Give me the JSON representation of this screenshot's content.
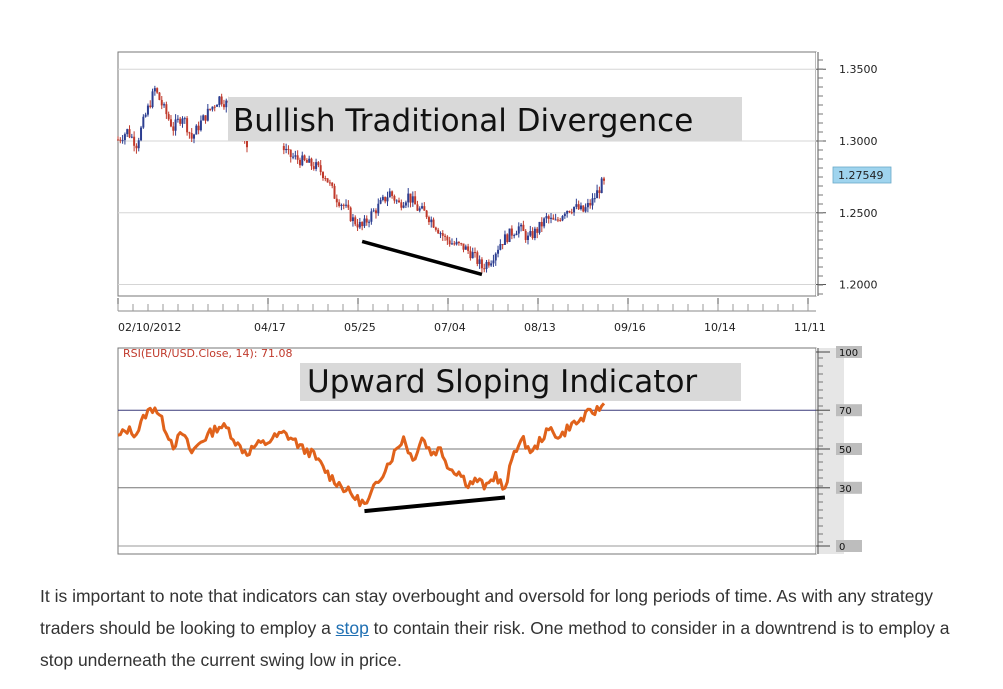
{
  "chart_data": [
    {
      "type": "candlestick",
      "title": "Bullish Traditional Divergence",
      "x_tick_labels": [
        "02/10/2012",
        "04/17",
        "05/25",
        "07/04",
        "08/13",
        "09/16",
        "10/14",
        "11/11"
      ],
      "y_tick_labels": [
        "1.3500",
        "1.3000",
        "1.2500",
        "1.2000"
      ],
      "ylim": [
        1.192,
        1.362
      ],
      "current_price_label": "1.27549",
      "current_price": 1.27549,
      "close_path": [
        [
          0,
          1.301
        ],
        [
          4,
          1.307
        ],
        [
          8,
          1.298
        ],
        [
          12,
          1.318
        ],
        [
          16,
          1.336
        ],
        [
          20,
          1.322
        ],
        [
          24,
          1.309
        ],
        [
          28,
          1.318
        ],
        [
          32,
          1.302
        ],
        [
          36,
          1.313
        ],
        [
          40,
          1.322
        ],
        [
          44,
          1.33
        ],
        [
          48,
          1.325
        ],
        [
          52,
          1.315
        ],
        [
          56,
          1.296
        ],
        [
          62,
          1.3
        ],
        [
          68,
          1.303
        ],
        [
          74,
          1.29
        ],
        [
          80,
          1.286
        ],
        [
          86,
          1.282
        ],
        [
          90,
          1.276
        ],
        [
          94,
          1.262
        ],
        [
          98,
          1.255
        ],
        [
          102,
          1.245
        ],
        [
          106,
          1.24
        ],
        [
          110,
          1.249
        ],
        [
          114,
          1.256
        ],
        [
          118,
          1.264
        ],
        [
          122,
          1.256
        ],
        [
          126,
          1.262
        ],
        [
          130,
          1.253
        ],
        [
          134,
          1.249
        ],
        [
          138,
          1.241
        ],
        [
          142,
          1.232
        ],
        [
          146,
          1.228
        ],
        [
          150,
          1.226
        ],
        [
          154,
          1.221
        ],
        [
          158,
          1.212
        ],
        [
          162,
          1.218
        ],
        [
          166,
          1.229
        ],
        [
          170,
          1.235
        ],
        [
          174,
          1.24
        ],
        [
          178,
          1.232
        ],
        [
          182,
          1.238
        ],
        [
          186,
          1.246
        ],
        [
          190,
          1.243
        ],
        [
          194,
          1.252
        ],
        [
          198,
          1.254
        ],
        [
          202,
          1.251
        ],
        [
          206,
          1.258
        ],
        [
          210,
          1.27
        ]
      ],
      "trendline": {
        "from": [
          106,
          1.23
        ],
        "to": [
          158,
          1.207
        ]
      }
    },
    {
      "type": "line",
      "title": "Upward Sloping Indicator",
      "legend": "RSI(EUR/USD.Close, 14): 71.08",
      "y_tick_labels": [
        "100",
        "70",
        "50",
        "30",
        "0"
      ],
      "ylim": [
        0,
        100
      ],
      "reference_lines": [
        70,
        50,
        30
      ],
      "values_path": [
        [
          0,
          56
        ],
        [
          4,
          60
        ],
        [
          8,
          58
        ],
        [
          12,
          68
        ],
        [
          16,
          72
        ],
        [
          20,
          62
        ],
        [
          24,
          52
        ],
        [
          28,
          58
        ],
        [
          32,
          48
        ],
        [
          36,
          54
        ],
        [
          40,
          58
        ],
        [
          44,
          62
        ],
        [
          48,
          60
        ],
        [
          52,
          52
        ],
        [
          56,
          48
        ],
        [
          60,
          52
        ],
        [
          64,
          53
        ],
        [
          68,
          56
        ],
        [
          72,
          58
        ],
        [
          76,
          55
        ],
        [
          80,
          50
        ],
        [
          84,
          48
        ],
        [
          88,
          42
        ],
        [
          92,
          36
        ],
        [
          96,
          32
        ],
        [
          100,
          28
        ],
        [
          104,
          24
        ],
        [
          108,
          21
        ],
        [
          112,
          32
        ],
        [
          116,
          40
        ],
        [
          120,
          48
        ],
        [
          124,
          56
        ],
        [
          128,
          44
        ],
        [
          132,
          56
        ],
        [
          136,
          48
        ],
        [
          140,
          50
        ],
        [
          144,
          40
        ],
        [
          148,
          38
        ],
        [
          152,
          32
        ],
        [
          156,
          34
        ],
        [
          160,
          30
        ],
        [
          164,
          37
        ],
        [
          168,
          28
        ],
        [
          172,
          50
        ],
        [
          176,
          54
        ],
        [
          180,
          48
        ],
        [
          184,
          56
        ],
        [
          188,
          60
        ],
        [
          192,
          56
        ],
        [
          196,
          62
        ],
        [
          200,
          64
        ],
        [
          204,
          68
        ],
        [
          208,
          70
        ],
        [
          211,
          73
        ]
      ],
      "trendline": {
        "from": [
          107,
          18
        ],
        "to": [
          168,
          25
        ]
      }
    }
  ],
  "article": {
    "text_before_link": "It is important to note that indicators can stay overbought and oversold for long periods of time. As with any strategy traders should be looking to employ a ",
    "link_text": "stop",
    "text_after_link": " to contain their risk. One method to consider in a downtrend is to employ a stop underneath the current swing low in price."
  },
  "colors": {
    "up_candle": "#2c3e91",
    "down_candle": "#c0392b",
    "rsi_line": "#e0621b",
    "trendline": "#000000",
    "price_tag": "#9fd4ee",
    "banner": "#d9d9d9",
    "reference_line_70": "#3a3a7a",
    "axis_panel": "#e6e6e6"
  }
}
